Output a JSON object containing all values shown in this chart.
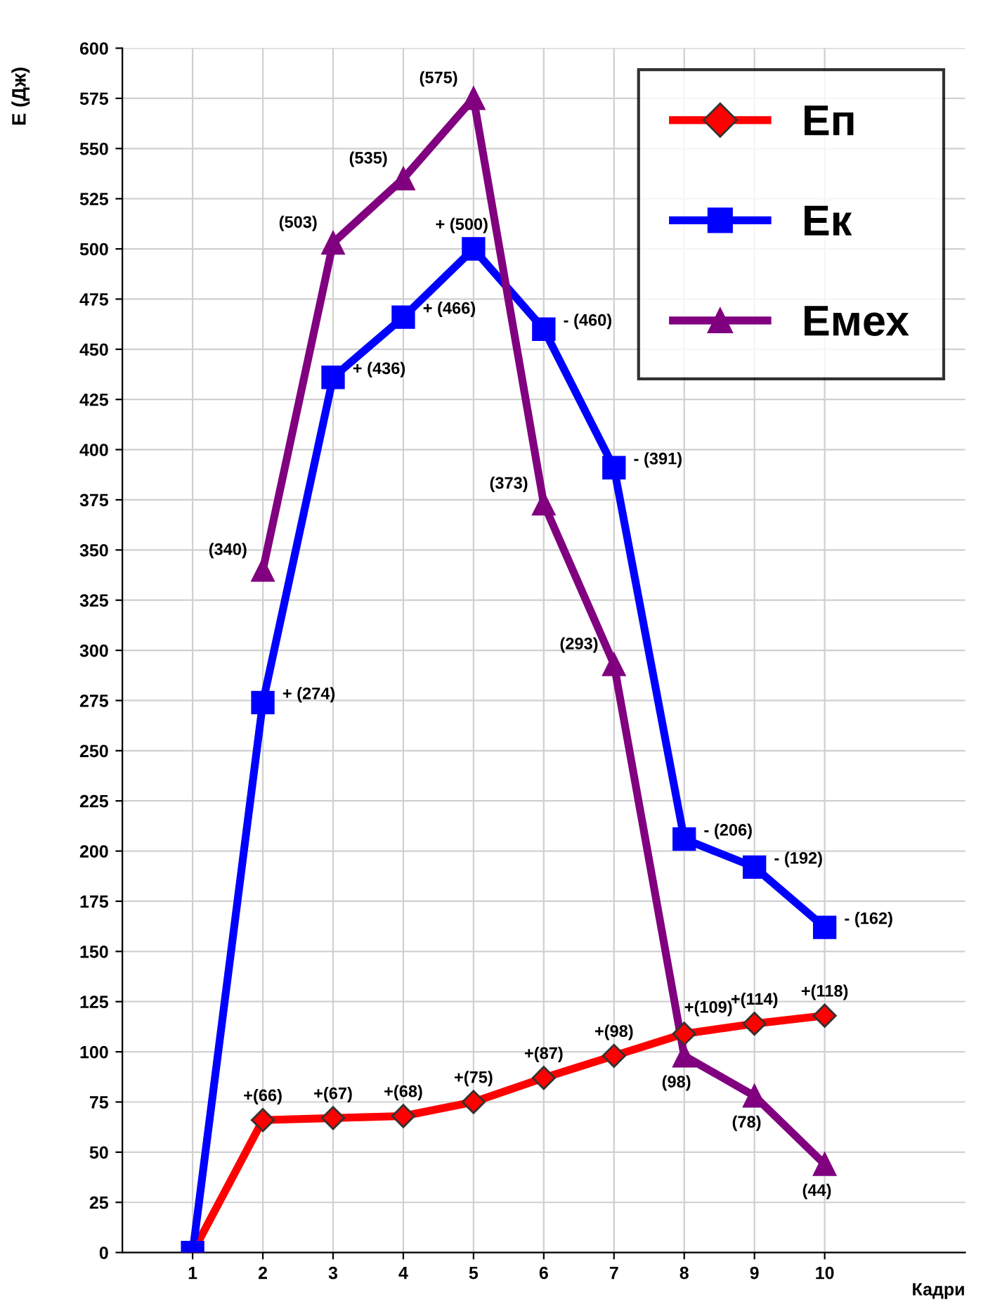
{
  "chart_data": {
    "type": "line",
    "ylabel": "E (Дж)",
    "xlabel": "Кадри",
    "x": [
      1,
      2,
      3,
      4,
      5,
      6,
      7,
      8,
      9,
      10
    ],
    "xlim": [
      0,
      12
    ],
    "xticks": [
      1,
      2,
      3,
      4,
      5,
      6,
      7,
      8,
      9,
      10
    ],
    "ylim": [
      0,
      600
    ],
    "yticks": [
      0,
      25,
      50,
      75,
      100,
      125,
      150,
      175,
      200,
      225,
      250,
      275,
      300,
      325,
      350,
      375,
      400,
      425,
      450,
      475,
      500,
      525,
      550,
      575,
      600
    ],
    "grid": true,
    "legend": "top right",
    "series": [
      {
        "name": "Еп",
        "color": "#ff0000",
        "marker": "diamond",
        "values": [
          0,
          66,
          67,
          68,
          75,
          87,
          98,
          109,
          114,
          118
        ],
        "value_labels": [
          null,
          "+(66)",
          "+(67)",
          "+(68)",
          "+(75)",
          "+(87)",
          "+(98)",
          "+(109)",
          "+(114)",
          "+(118)"
        ]
      },
      {
        "name": "Ек",
        "color": "#0000ff",
        "marker": "square",
        "values": [
          0,
          274,
          436,
          466,
          500,
          460,
          391,
          206,
          192,
          162
        ],
        "value_labels": [
          null,
          "+ (274)",
          "+ (436)",
          "+ (466)",
          "+ (500)",
          "- (460)",
          "- (391)",
          "- (206)",
          "- (192)",
          "- (162)"
        ]
      },
      {
        "name": "Емех",
        "color": "#800080",
        "marker": "triangle",
        "x": [
          2,
          3,
          4,
          5,
          6,
          7,
          8,
          9,
          10
        ],
        "values": [
          340,
          503,
          535,
          575,
          373,
          293,
          98,
          78,
          44
        ],
        "value_labels": [
          "(340)",
          "(503)",
          "(535)",
          "(575)",
          "(373)",
          "(293)",
          "(98)",
          "(78)",
          "(44)"
        ]
      }
    ]
  }
}
